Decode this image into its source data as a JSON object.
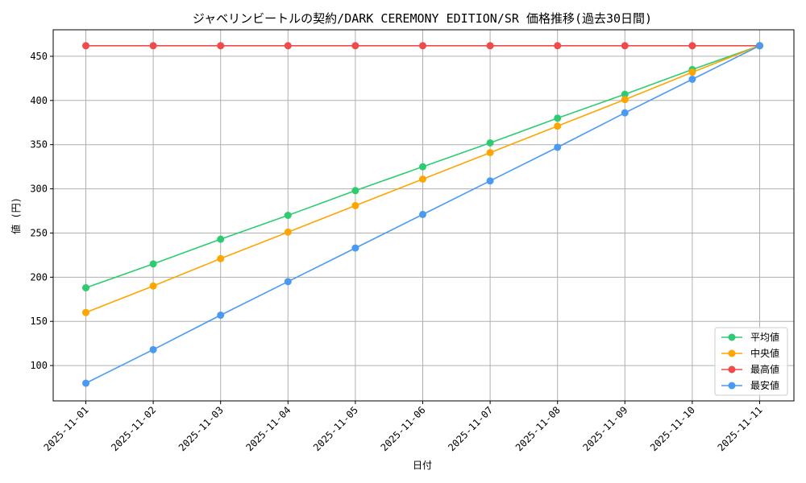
{
  "chart_data": {
    "type": "line",
    "title": "ジャベリンビートルの契約/DARK CEREMONY EDITION/SR 価格推移(過去30日間)",
    "xlabel": "日付",
    "ylabel": "値 (円)",
    "categories": [
      "2025-11-01",
      "2025-11-02",
      "2025-11-03",
      "2025-11-04",
      "2025-11-05",
      "2025-11-06",
      "2025-11-07",
      "2025-11-08",
      "2025-11-09",
      "2025-11-10",
      "2025-11-11"
    ],
    "ylim": [
      60,
      480
    ],
    "yticks": [
      100,
      150,
      200,
      250,
      300,
      350,
      400,
      450
    ],
    "grid": true,
    "legend_position": "bottom-right",
    "series": [
      {
        "name": "平均値",
        "color": "#2ecc71",
        "values": [
          188,
          215,
          243,
          270,
          298,
          325,
          352,
          380,
          407,
          435,
          462
        ]
      },
      {
        "name": "中央値",
        "color": "#ffa500",
        "values": [
          160,
          190,
          221,
          251,
          281,
          311,
          341,
          371,
          401,
          432,
          462
        ]
      },
      {
        "name": "最高値",
        "color": "#f14a4a",
        "values": [
          462,
          462,
          462,
          462,
          462,
          462,
          462,
          462,
          462,
          462,
          462
        ]
      },
      {
        "name": "最安値",
        "color": "#4a9af1",
        "values": [
          80,
          118,
          157,
          195,
          233,
          271,
          309,
          347,
          386,
          424,
          462
        ]
      }
    ]
  }
}
